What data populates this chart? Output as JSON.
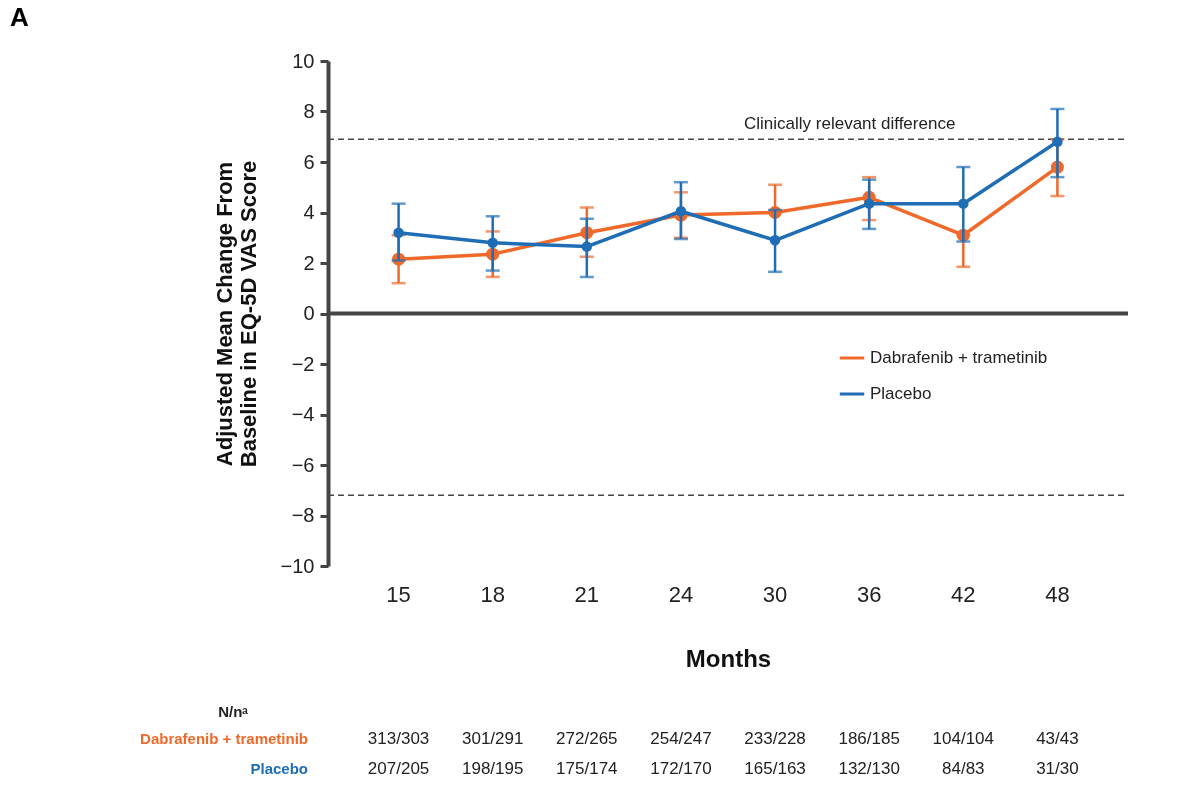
{
  "chart_data": {
    "type": "line",
    "title": "A",
    "xlabel": "Months",
    "ylabel": "Adjusted Mean Change From\nBaseline in EQ-5D VAS Score",
    "categories": [
      "15",
      "18",
      "21",
      "24",
      "30",
      "36",
      "42",
      "48"
    ],
    "series": [
      {
        "name": "Dabrafenib + trametinib",
        "color": "#ef6a2a",
        "values": [
          2.15,
          2.35,
          3.2,
          3.9,
          4.0,
          4.6,
          3.1,
          5.8
        ],
        "errors": [
          [
            1.2,
            3.1
          ],
          [
            1.45,
            3.25
          ],
          [
            2.25,
            4.2
          ],
          [
            3.0,
            4.8
          ],
          [
            4.0,
            5.1
          ],
          [
            3.7,
            5.4
          ],
          [
            1.85,
            3.1
          ],
          [
            4.65,
            6.9
          ]
        ]
      },
      {
        "name": "Placebo",
        "color": "#1f6db5",
        "values": [
          3.2,
          2.8,
          2.65,
          4.05,
          2.9,
          4.35,
          4.35,
          6.8
        ],
        "errors": [
          [
            2.1,
            4.35
          ],
          [
            1.7,
            3.85
          ],
          [
            1.45,
            3.75
          ],
          [
            2.95,
            5.2
          ],
          [
            1.65,
            4.1
          ],
          [
            3.35,
            5.3
          ],
          [
            2.85,
            5.8
          ],
          [
            5.4,
            8.1
          ]
        ]
      }
    ],
    "ylim": [
      -10,
      10
    ],
    "yticks": [
      -10,
      -8,
      -6,
      -4,
      -2,
      0,
      2,
      4,
      6,
      8,
      10
    ],
    "ref_lines": [
      {
        "axis": "y",
        "value": 0,
        "color": "#444444",
        "line_style": "solid"
      },
      {
        "axis": "y",
        "value": 6.9,
        "label": "Clinically relevant difference",
        "color": "#444444",
        "line_style": "dashed"
      },
      {
        "axis": "y",
        "value": -7.2,
        "color": "#444444",
        "line_style": "dashed"
      }
    ],
    "legend": "bottom right",
    "marker": "circle",
    "line_style": "solid",
    "grid": false,
    "annotations": [
      "N/nᵃ",
      "313/303",
      "301/291",
      "272/265",
      "254/247",
      "233/228",
      "186/185",
      "104/104",
      "43/43",
      "207/205",
      "198/195",
      "175/174",
      "172/170",
      "165/163",
      "132/130",
      "84/83",
      "31/30"
    ]
  }
}
